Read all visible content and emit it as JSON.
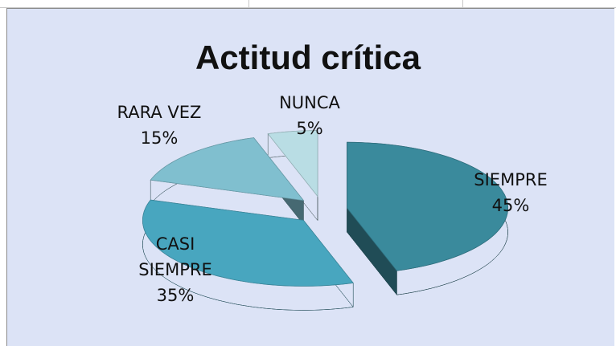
{
  "chart_data": {
    "type": "pie",
    "title": "Actitud crítica",
    "categories": [
      "SIEMPRE",
      "CASI SIEMPRE",
      "RARA VEZ",
      "NUNCA"
    ],
    "values": [
      45,
      35,
      15,
      5
    ],
    "value_labels": [
      "45%",
      "35%",
      "15%",
      "5%"
    ],
    "colors": [
      "#3a8a9c",
      "#48a6bf",
      "#80bfcf",
      "#b9dde4"
    ]
  }
}
